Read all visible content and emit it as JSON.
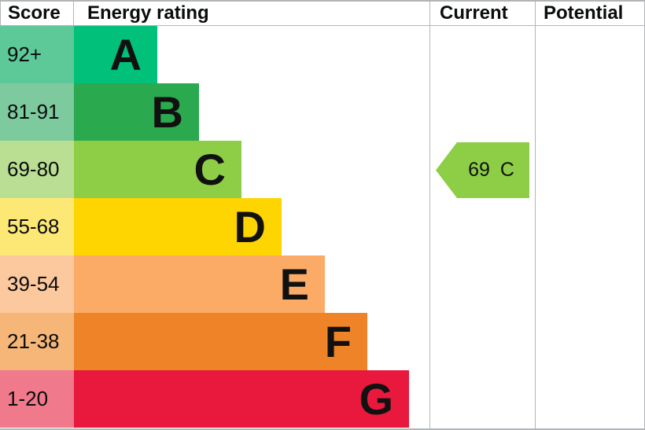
{
  "header": {
    "score": "Score",
    "energy_rating": "Energy rating",
    "current": "Current",
    "potential": "Potential"
  },
  "bands": [
    {
      "score_range": "92+",
      "letter": "A",
      "bar_color": "#00c07a",
      "score_bg": "#5ec998"
    },
    {
      "score_range": "81-91",
      "letter": "B",
      "bar_color": "#2aa94e",
      "score_bg": "#7dca9e"
    },
    {
      "score_range": "69-80",
      "letter": "C",
      "bar_color": "#8dce46",
      "score_bg": "#bade92"
    },
    {
      "score_range": "55-68",
      "letter": "D",
      "bar_color": "#fed500",
      "score_bg": "#fde875"
    },
    {
      "score_range": "39-54",
      "letter": "E",
      "bar_color": "#fcab67",
      "score_bg": "#fcc89d"
    },
    {
      "score_range": "21-38",
      "letter": "F",
      "bar_color": "#ee8327",
      "score_bg": "#f5b678"
    },
    {
      "score_range": "1-20",
      "letter": "G",
      "bar_color": "#e8193c",
      "score_bg": "#f0798b"
    }
  ],
  "current_rating": {
    "score": "69",
    "band": "C",
    "arrow_color": "#8dce46"
  },
  "colors": {
    "border": "#b2b5b7",
    "text": "#0b0c0c"
  },
  "chart_data": {
    "type": "bar",
    "orientation": "horizontal",
    "title": "Energy rating",
    "columns": [
      "Score",
      "Energy rating",
      "Current",
      "Potential"
    ],
    "categories": [
      "A",
      "B",
      "C",
      "D",
      "E",
      "F",
      "G"
    ],
    "score_ranges": [
      "92+",
      "81-91",
      "69-80",
      "55-68",
      "39-54",
      "21-38",
      "1-20"
    ],
    "bar_lengths_relative": [
      1,
      1.5,
      2,
      2.48,
      3,
      3.5,
      4
    ],
    "band_colors": [
      "#00c07a",
      "#2aa94e",
      "#8dce46",
      "#fed500",
      "#fcab67",
      "#ee8327",
      "#e8193c"
    ],
    "current": {
      "score": 69,
      "band": "C"
    },
    "potential": null,
    "legend": false,
    "grid": false
  }
}
